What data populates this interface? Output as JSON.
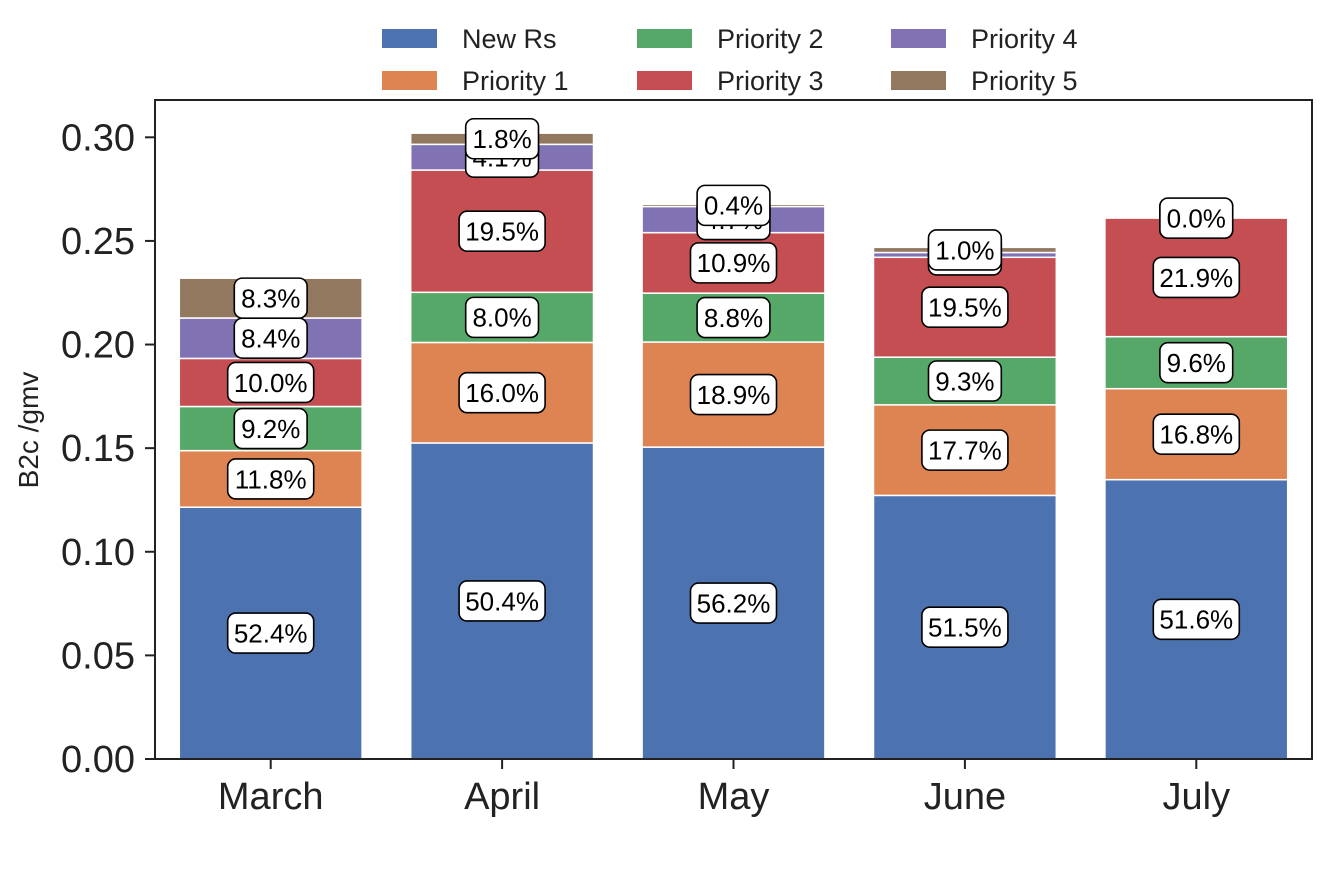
{
  "chart_data": {
    "type": "bar",
    "stacked": true,
    "categories": [
      "March",
      "April",
      "May",
      "June",
      "July"
    ],
    "ylabel": "B2c /gmv",
    "xlabel": "",
    "title": "",
    "ylim": [
      0,
      0.318
    ],
    "yticks": [
      "0.00",
      "0.05",
      "0.10",
      "0.15",
      "0.20",
      "0.25",
      "0.30"
    ],
    "ytick_values": [
      0,
      0.05,
      0.1,
      0.15,
      0.2,
      0.25,
      0.3
    ],
    "grid": false,
    "legend_position": "top-center",
    "series": [
      {
        "name": "New Rs",
        "color": "#4c72b0",
        "values": [
          0.1215,
          0.1525,
          0.1505,
          0.1272,
          0.1348
        ],
        "labels": [
          "52.4%",
          "50.4%",
          "56.2%",
          "51.5%",
          "51.6%"
        ]
      },
      {
        "name": "Priority 1",
        "color": "#dd8452",
        "values": [
          0.0273,
          0.0485,
          0.0507,
          0.0437,
          0.0439
        ],
        "labels": [
          "11.8%",
          "16.0%",
          "18.9%",
          "17.7%",
          "16.8%"
        ]
      },
      {
        "name": "Priority 2",
        "color": "#55a868",
        "values": [
          0.0213,
          0.0242,
          0.0236,
          0.023,
          0.0251
        ],
        "labels": [
          "9.2%",
          "8.0%",
          "8.8%",
          "9.3%",
          "9.6%"
        ]
      },
      {
        "name": "Priority 3",
        "color": "#c44e52",
        "values": [
          0.0232,
          0.059,
          0.0292,
          0.0482,
          0.0572
        ],
        "labels": [
          "10.0%",
          "19.5%",
          "10.9%",
          "19.5%",
          "21.9%"
        ]
      },
      {
        "name": "Priority 4",
        "color": "#8172b3",
        "values": [
          0.0195,
          0.0124,
          0.0126,
          0.0023,
          0.0
        ],
        "labels": [
          "8.4%",
          "4.1%",
          "4.7%",
          "0.9%",
          "0.0%"
        ]
      },
      {
        "name": "Priority 5",
        "color": "#937860",
        "values": [
          0.0192,
          0.0054,
          0.0011,
          0.0025,
          0.0
        ],
        "labels": [
          "8.3%",
          "1.8%",
          "0.4%",
          "1.0%",
          "0.0%"
        ]
      }
    ]
  }
}
